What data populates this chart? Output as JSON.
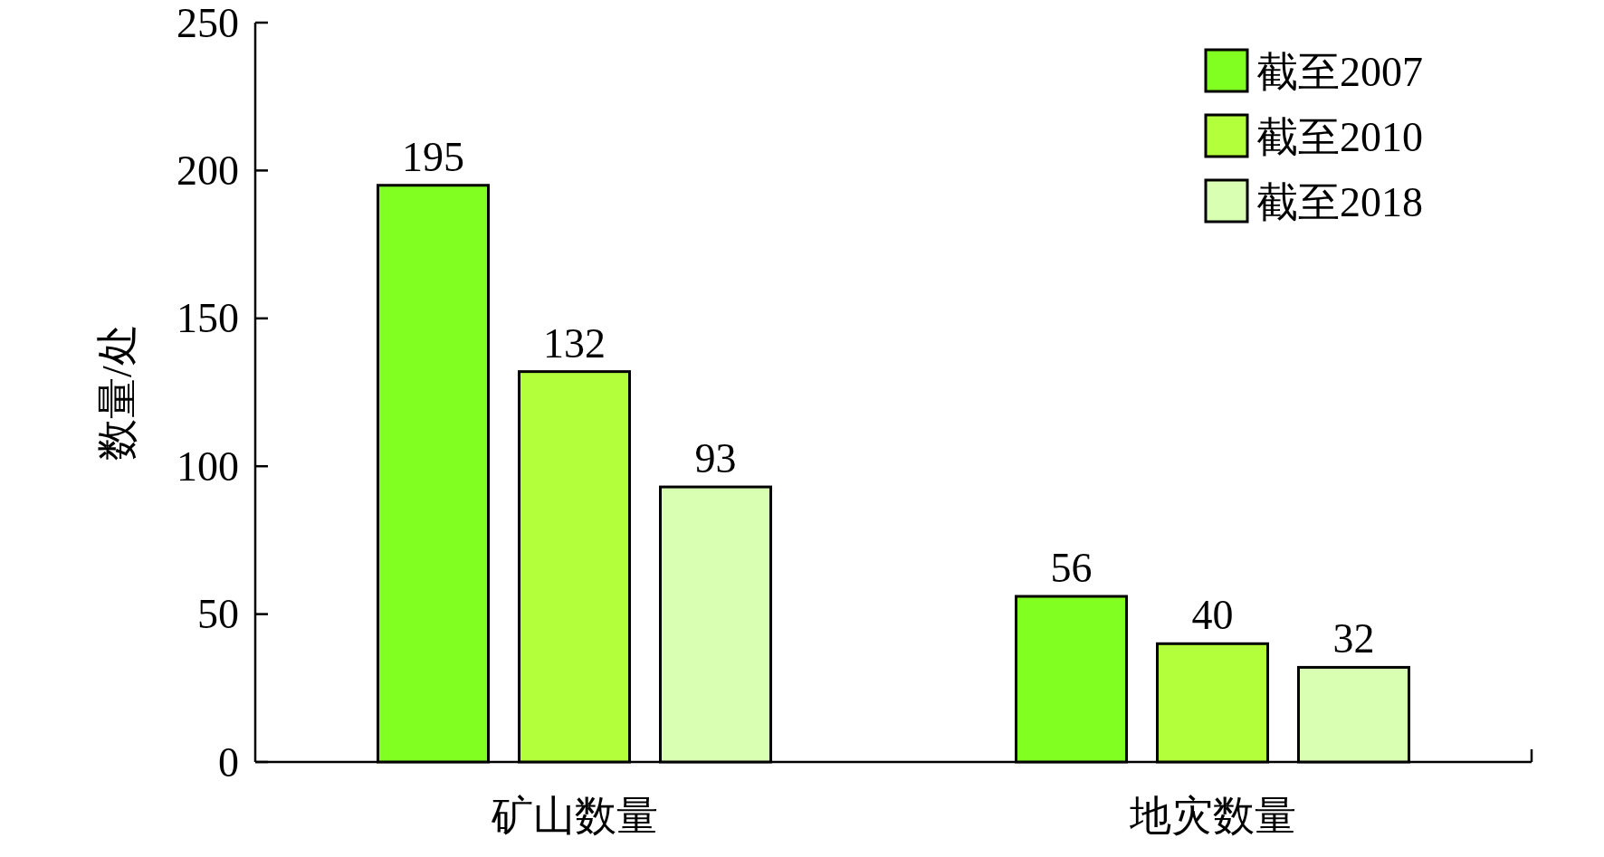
{
  "chart_data": {
    "type": "bar",
    "ylabel": "数量/处",
    "categories": [
      "矿山数量",
      "地灾数量"
    ],
    "series": [
      {
        "name": "截至2007",
        "color": "#80ff20",
        "values": [
          195,
          56
        ]
      },
      {
        "name": "截至2010",
        "color": "#b3ff3c",
        "values": [
          132,
          40
        ]
      },
      {
        "name": "截至2018",
        "color": "#d9ffb3",
        "values": [
          93,
          32
        ]
      }
    ],
    "ylim": [
      0,
      250
    ],
    "yticks": [
      0,
      50,
      100,
      150,
      200,
      250
    ],
    "data_labels": true,
    "legend": "top right",
    "grid": false
  }
}
